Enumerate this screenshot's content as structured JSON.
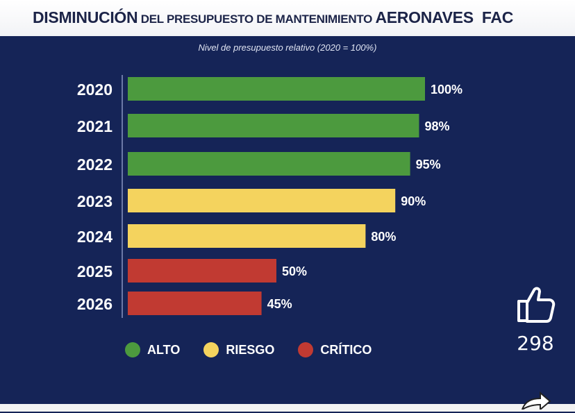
{
  "title": {
    "part1": "DISMINUCIÓN",
    "part2": " DEL PRESUPUESTO DE MANTENIMIENTO ",
    "part3": "AERONAVES",
    "part4": "  FAC"
  },
  "subtitle": "Nivel de presupuesto relativo (2020 = 100%)",
  "colors": {
    "background": "#152457",
    "alto": "#4c9a3e",
    "riesgo": "#f4d35e",
    "critico": "#c13a32"
  },
  "chart_data": {
    "type": "bar",
    "orientation": "horizontal",
    "categories": [
      "2020",
      "2021",
      "2022",
      "2023",
      "2024",
      "2025",
      "2026"
    ],
    "values": [
      100,
      98,
      95,
      90,
      80,
      50,
      45
    ],
    "labels": [
      "100%",
      "98%",
      "95%",
      "90%",
      "80%",
      "50%",
      "45%"
    ],
    "levels": [
      "alto",
      "alto",
      "alto",
      "riesgo",
      "riesgo",
      "critico",
      "critico"
    ],
    "xlim": [
      0,
      100
    ],
    "grid": false,
    "legend": [
      {
        "key": "alto",
        "label": "ALTO"
      },
      {
        "key": "riesgo",
        "label": "RIESGO"
      },
      {
        "key": "critico",
        "label": "CRÍTICO"
      }
    ],
    "legend_position": "bottom"
  },
  "overlay": {
    "like_icon": "thumbs-up-icon",
    "like_count": "298",
    "share_icon": "share-icon"
  }
}
